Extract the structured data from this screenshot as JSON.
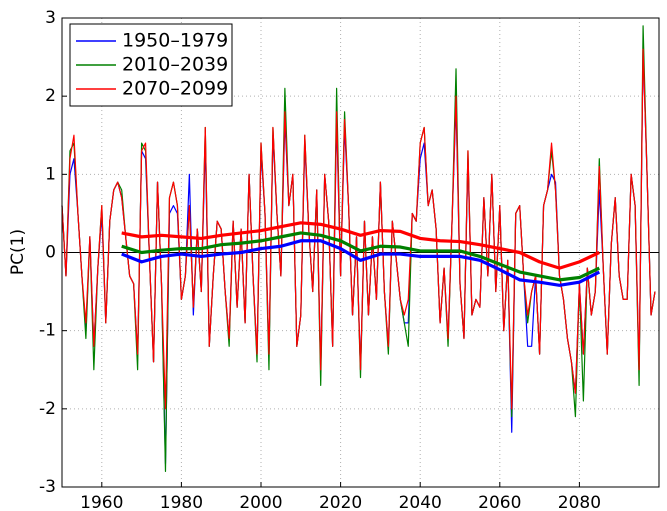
{
  "chart_data": {
    "type": "line",
    "ylabel": "PC(1)",
    "xlim": [
      1950,
      2100
    ],
    "ylim": [
      -3,
      3
    ],
    "xticks": [
      1960,
      1980,
      2000,
      2020,
      2040,
      2060,
      2080
    ],
    "yticks": [
      -3,
      -2,
      -1,
      0,
      1,
      2,
      3
    ],
    "grid": true,
    "legend": "upper left",
    "x": [
      1950,
      1951,
      1952,
      1953,
      1954,
      1955,
      1956,
      1957,
      1958,
      1959,
      1960,
      1961,
      1962,
      1963,
      1964,
      1965,
      1966,
      1967,
      1968,
      1969,
      1970,
      1971,
      1972,
      1973,
      1974,
      1975,
      1976,
      1977,
      1978,
      1979,
      1980,
      1981,
      1982,
      1983,
      1984,
      1985,
      1986,
      1987,
      1988,
      1989,
      1990,
      1991,
      1992,
      1993,
      1994,
      1995,
      1996,
      1997,
      1998,
      1999,
      2000,
      2001,
      2002,
      2003,
      2004,
      2005,
      2006,
      2007,
      2008,
      2009,
      2010,
      2011,
      2012,
      2013,
      2014,
      2015,
      2016,
      2017,
      2018,
      2019,
      2020,
      2021,
      2022,
      2023,
      2024,
      2025,
      2026,
      2027,
      2028,
      2029,
      2030,
      2031,
      2032,
      2033,
      2034,
      2035,
      2036,
      2037,
      2038,
      2039,
      2040,
      2041,
      2042,
      2043,
      2044,
      2045,
      2046,
      2047,
      2048,
      2049,
      2050,
      2051,
      2052,
      2053,
      2054,
      2055,
      2056,
      2057,
      2058,
      2059,
      2060,
      2061,
      2062,
      2063,
      2064,
      2065,
      2066,
      2067,
      2068,
      2069,
      2070,
      2071,
      2072,
      2073,
      2074,
      2075,
      2076,
      2077,
      2078,
      2079,
      2080,
      2081,
      2082,
      2083,
      2084,
      2085,
      2086,
      2087,
      2088,
      2089,
      2090,
      2091,
      2092,
      2093,
      2094,
      2095,
      2096,
      2097,
      2098,
      2099
    ],
    "series": [
      {
        "name": "1950–1979",
        "color": "#0000ff",
        "width": 1.2,
        "values": [
          0.6,
          -0.3,
          1.0,
          1.2,
          0.5,
          -0.3,
          -1.0,
          0.2,
          -1.2,
          -0.2,
          0.5,
          -0.9,
          0.4,
          0.8,
          0.9,
          0.7,
          0.2,
          -0.3,
          -0.4,
          -1.3,
          1.3,
          1.2,
          -0.1,
          -1.4,
          0.9,
          -0.4,
          -2.7,
          0.5,
          0.6,
          0.5,
          -0.6,
          -0.3,
          1.0,
          -0.8,
          0.3,
          -0.5,
          1.4,
          -1.2,
          -0.3,
          0.4,
          0.3,
          -0.5,
          -1.1,
          0.4,
          -0.7,
          0.3,
          -0.9,
          1.0,
          -0.3,
          -1.3,
          1.3,
          0.5,
          -1.3,
          1.5,
          0.5,
          -0.3,
          1.7,
          0.6,
          1.0,
          -1.2,
          -0.8,
          1.4,
          0.3,
          -0.5,
          0.8,
          -1.5,
          1.0,
          0.4,
          -1.2,
          1.7,
          -0.3,
          1.6,
          0.6,
          -0.8,
          0.2,
          -1.5,
          0.4,
          -0.8,
          0.2,
          -0.6,
          0.9,
          -0.5,
          -1.2,
          0.4,
          -0.1,
          -0.6,
          -0.9,
          -0.9,
          0.5,
          0.4,
          1.2,
          1.4,
          0.6,
          0.8,
          0.3,
          -0.9,
          -0.2,
          -1.1,
          0.4,
          1.9,
          -0.4,
          -1.1,
          1.2,
          -0.8,
          -0.6,
          -0.7,
          0.7,
          -0.3,
          1.0,
          -0.5,
          0.6,
          -1.0,
          -0.1,
          -2.3,
          0.5,
          0.6,
          -0.3,
          -1.2,
          -1.2,
          -0.3,
          -1.3,
          0.6,
          0.8,
          1.0,
          0.9,
          -0.3,
          -0.6,
          -1.1,
          -1.4,
          -1.8,
          -0.4,
          -1.3,
          -0.2,
          -0.8,
          -0.5,
          0.8,
          -0.2,
          -1.3,
          0.1,
          0.7,
          -0.3,
          -0.6,
          -0.6,
          1.0,
          0.6,
          -1.5,
          2.6,
          1.0,
          -0.8,
          -0.5
        ]
      },
      {
        "name": "2010–2039",
        "color": "#008000",
        "width": 1.2,
        "values": [
          0.6,
          -0.3,
          1.3,
          1.4,
          0.5,
          -0.3,
          -1.1,
          0.2,
          -1.5,
          -0.2,
          0.6,
          -0.9,
          0.4,
          0.8,
          0.9,
          0.8,
          0.2,
          -0.3,
          -0.4,
          -1.5,
          1.4,
          1.3,
          -0.1,
          -1.4,
          0.9,
          -0.4,
          -2.8,
          0.7,
          0.9,
          0.6,
          -0.6,
          -0.3,
          0.6,
          -0.7,
          0.3,
          -0.5,
          1.6,
          -1.2,
          -0.3,
          0.4,
          0.3,
          -0.5,
          -1.2,
          0.4,
          -0.7,
          0.3,
          -0.9,
          1.0,
          -0.3,
          -1.4,
          1.4,
          0.5,
          -1.5,
          1.6,
          0.5,
          -0.3,
          2.1,
          0.6,
          1.0,
          -1.2,
          -0.8,
          1.5,
          0.3,
          -0.5,
          0.8,
          -1.7,
          1.0,
          0.4,
          -1.2,
          2.1,
          -0.3,
          1.8,
          0.6,
          -0.8,
          0.2,
          -1.6,
          0.4,
          -0.8,
          0.2,
          -0.6,
          0.9,
          -0.5,
          -1.3,
          0.4,
          -0.1,
          -0.6,
          -0.9,
          -1.2,
          0.5,
          0.4,
          1.4,
          1.6,
          0.6,
          0.8,
          0.3,
          -0.9,
          -0.2,
          -1.2,
          0.4,
          2.35,
          -0.4,
          -1.1,
          1.3,
          -0.8,
          -0.6,
          -0.7,
          0.7,
          -0.3,
          1.0,
          -0.5,
          0.6,
          -1.0,
          -0.1,
          -2.1,
          0.5,
          0.6,
          -0.3,
          -0.9,
          -0.5,
          -0.3,
          -1.3,
          0.6,
          0.8,
          1.3,
          0.8,
          -0.3,
          -0.6,
          -1.1,
          -1.4,
          -2.1,
          -0.4,
          -1.9,
          -0.2,
          -0.8,
          -0.5,
          1.2,
          -0.2,
          -1.3,
          0.1,
          0.7,
          -0.3,
          -0.6,
          -0.6,
          1.0,
          0.6,
          -1.7,
          2.9,
          1.0,
          -0.8,
          -0.5
        ]
      },
      {
        "name": "2070–2099",
        "color": "#ff0000",
        "width": 1.2,
        "values": [
          0.6,
          -0.3,
          1.2,
          1.5,
          0.5,
          -0.3,
          -0.9,
          0.2,
          -1.2,
          -0.2,
          0.6,
          -0.9,
          0.4,
          0.8,
          0.9,
          0.7,
          0.2,
          -0.3,
          -0.4,
          -1.3,
          1.3,
          1.4,
          -0.1,
          -1.4,
          0.9,
          -0.4,
          -2.0,
          0.7,
          0.9,
          0.6,
          -0.6,
          -0.3,
          0.6,
          -0.7,
          0.3,
          -0.5,
          1.6,
          -1.2,
          -0.3,
          0.4,
          0.3,
          -0.5,
          -1.1,
          0.4,
          -0.7,
          0.3,
          -0.9,
          1.0,
          -0.3,
          -1.3,
          1.4,
          0.5,
          -1.3,
          1.6,
          0.5,
          -0.3,
          1.8,
          0.6,
          1.0,
          -1.2,
          -0.8,
          1.5,
          0.3,
          -0.5,
          0.8,
          -1.5,
          1.0,
          0.4,
          -1.2,
          1.8,
          -0.3,
          1.7,
          0.6,
          -0.8,
          0.2,
          -1.5,
          0.4,
          -0.8,
          0.2,
          -0.6,
          0.9,
          -0.5,
          -1.2,
          0.4,
          -0.1,
          -0.6,
          -0.8,
          -0.6,
          0.5,
          0.4,
          1.4,
          1.6,
          0.6,
          0.8,
          0.3,
          -0.9,
          -0.2,
          -1.1,
          0.4,
          2.0,
          -0.4,
          -1.1,
          1.3,
          -0.8,
          -0.6,
          -0.7,
          0.7,
          -0.3,
          1.0,
          -0.5,
          0.6,
          -1.0,
          -0.1,
          -2.0,
          0.5,
          0.6,
          -0.3,
          -0.8,
          -0.5,
          -0.3,
          -1.3,
          0.6,
          0.8,
          1.4,
          0.8,
          -0.3,
          -0.6,
          -1.1,
          -1.4,
          -1.8,
          -0.4,
          -1.3,
          -0.2,
          -0.8,
          -0.5,
          1.1,
          -0.2,
          -1.3,
          0.1,
          0.7,
          -0.3,
          -0.6,
          -0.6,
          1.0,
          0.6,
          -1.5,
          2.6,
          1.0,
          -0.8,
          -0.5
        ]
      },
      {
        "color": "#0000ff",
        "width": 3.2,
        "x": [
          1965,
          1970,
          1975,
          1980,
          1985,
          1990,
          1995,
          2000,
          2005,
          2010,
          2015,
          2020,
          2025,
          2030,
          2035,
          2040,
          2045,
          2050,
          2055,
          2060,
          2065,
          2070,
          2075,
          2080,
          2085
        ],
        "values": [
          -0.02,
          -0.12,
          -0.05,
          -0.02,
          -0.05,
          -0.02,
          0.0,
          0.05,
          0.08,
          0.15,
          0.15,
          0.05,
          -0.1,
          -0.02,
          -0.02,
          -0.05,
          -0.05,
          -0.05,
          -0.1,
          -0.22,
          -0.35,
          -0.38,
          -0.42,
          -0.38,
          -0.25
        ]
      },
      {
        "color": "#008000",
        "width": 3.2,
        "x": [
          1965,
          1970,
          1975,
          1980,
          1985,
          1990,
          1995,
          2000,
          2005,
          2010,
          2015,
          2020,
          2025,
          2030,
          2035,
          2040,
          2045,
          2050,
          2055,
          2060,
          2065,
          2070,
          2075,
          2080,
          2085
        ],
        "values": [
          0.08,
          0.0,
          0.03,
          0.05,
          0.05,
          0.1,
          0.12,
          0.15,
          0.2,
          0.25,
          0.22,
          0.15,
          0.02,
          0.08,
          0.07,
          0.02,
          0.02,
          0.02,
          -0.05,
          -0.15,
          -0.25,
          -0.3,
          -0.35,
          -0.32,
          -0.2
        ]
      },
      {
        "color": "#ff0000",
        "width": 3.2,
        "x": [
          1965,
          1970,
          1975,
          1980,
          1985,
          1990,
          1995,
          2000,
          2005,
          2010,
          2015,
          2020,
          2025,
          2030,
          2035,
          2040,
          2045,
          2050,
          2055,
          2060,
          2065,
          2070,
          2075,
          2080,
          2085
        ],
        "values": [
          0.25,
          0.2,
          0.22,
          0.2,
          0.18,
          0.22,
          0.25,
          0.28,
          0.33,
          0.38,
          0.36,
          0.3,
          0.22,
          0.28,
          0.27,
          0.18,
          0.15,
          0.14,
          0.1,
          0.05,
          0.0,
          -0.12,
          -0.2,
          -0.12,
          0.0
        ]
      }
    ]
  }
}
